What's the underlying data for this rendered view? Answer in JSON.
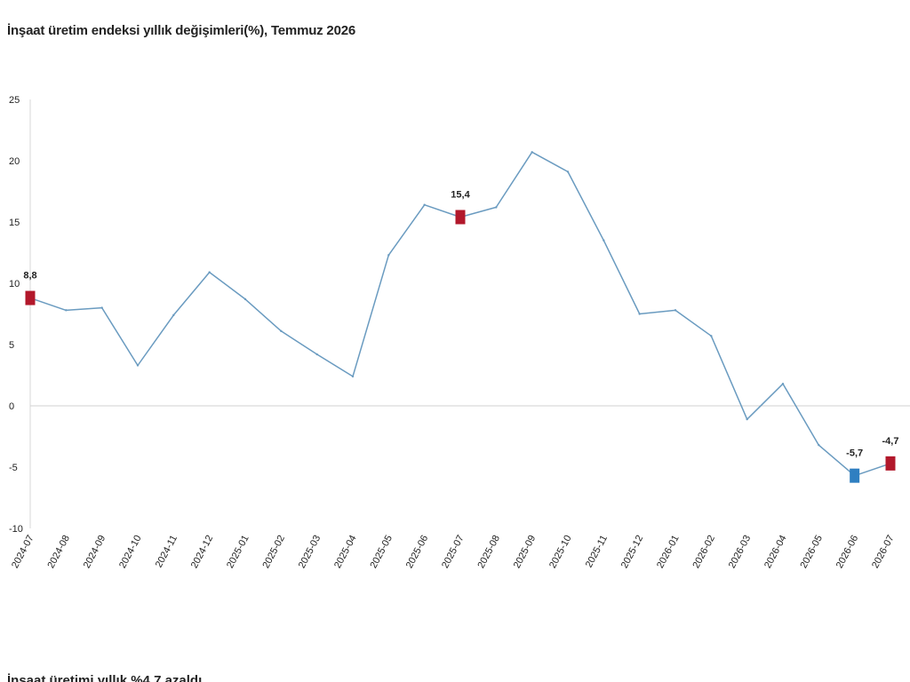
{
  "header": {
    "title": "İnşaat üretim endeksi yıllık değişimleri(%), Temmuz 2026"
  },
  "footer": {
    "text": "İnşaat üretimi yıllık %4,7 azaldı"
  },
  "chart_data": {
    "type": "line",
    "title": "İnşaat üretim endeksi yıllık değişimleri(%), Temmuz 2026",
    "xlabel": "",
    "ylabel": "",
    "ylim": [
      -10,
      25
    ],
    "y_ticks": [
      "25",
      "20",
      "15",
      "10",
      "5",
      "0",
      "-5",
      "-10"
    ],
    "y_tick_values": [
      25,
      20,
      15,
      10,
      5,
      0,
      -5,
      -10
    ],
    "grid": {
      "horizontal_zero_line": true,
      "vertical": false
    },
    "categories": [
      "2024-07",
      "2024-08",
      "2024-09",
      "2024-10",
      "2024-11",
      "2024-12",
      "2025-01",
      "2025-02",
      "2025-03",
      "2025-04",
      "2025-05",
      "2025-06",
      "2025-07",
      "2025-08",
      "2025-09",
      "2025-10",
      "2025-11",
      "2025-12",
      "2026-01",
      "2026-02",
      "2026-03",
      "2026-04",
      "2026-05",
      "2026-06",
      "2026-07"
    ],
    "series": [
      {
        "values": [
          8.8,
          7.8,
          8.0,
          3.3,
          7.4,
          10.9,
          8.7,
          6.1,
          4.2,
          2.4,
          12.3,
          16.4,
          15.4,
          16.2,
          20.7,
          19.1,
          13.5,
          7.5,
          7.8,
          5.7,
          -1.1,
          1.8,
          -3.2,
          -5.7,
          -4.7
        ],
        "color": "#6a9bc0"
      }
    ],
    "markers": [
      {
        "category": "2024-07",
        "value": 8.8,
        "label": "8,8",
        "color": "#b2182b"
      },
      {
        "category": "2025-07",
        "value": 15.4,
        "label": "15,4",
        "color": "#b2182b"
      },
      {
        "category": "2026-06",
        "value": -5.7,
        "label": "-5,7",
        "color": "#2f7fc1"
      },
      {
        "category": "2026-07",
        "value": -4.7,
        "label": "-4,7",
        "color": "#b2182b"
      }
    ],
    "colors": {
      "line": "#6a9bc0",
      "axis": "#d7d7d7",
      "zero_line": "#d0d0d0",
      "marker_red": "#b2182b",
      "marker_blue": "#2f7fc1"
    }
  }
}
